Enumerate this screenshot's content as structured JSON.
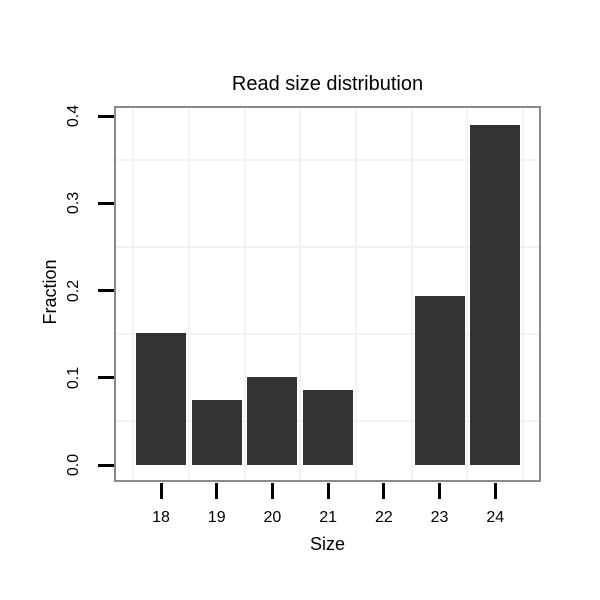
{
  "chart_data": {
    "type": "bar",
    "title": "Read size distribution",
    "xlabel": "Size",
    "ylabel": "Fraction",
    "categories": [
      18,
      19,
      20,
      21,
      22,
      23,
      24
    ],
    "values": [
      0.151,
      0.075,
      0.101,
      0.086,
      0,
      0.194,
      0.39
    ],
    "x_tick_labels": [
      "18",
      "19",
      "20",
      "21",
      "22",
      "23",
      "24"
    ],
    "y_tick_labels": [
      "0.0",
      "0.1",
      "0.2",
      "0.3",
      "0.4"
    ],
    "y_tick_values": [
      0,
      0.1,
      0.2,
      0.3,
      0.4
    ],
    "ylim": [
      0,
      0.4
    ],
    "xlim": [
      17.45,
      24.55
    ],
    "bar_width_units": 0.9,
    "grid": "minor-only",
    "minor_grid_y": [
      0.05,
      0.15,
      0.25,
      0.35
    ],
    "minor_grid_x": [
      17.5,
      18.5,
      19.5,
      20.5,
      21.5,
      22.5,
      23.5,
      24.5
    ],
    "legend_position": "none",
    "colors": {
      "bar_fill": "#333333",
      "panel_border": "#898989",
      "minor_grid": "#f2f2f2",
      "background": "#ffffff",
      "tick": "#000000",
      "text": "#000000"
    }
  }
}
